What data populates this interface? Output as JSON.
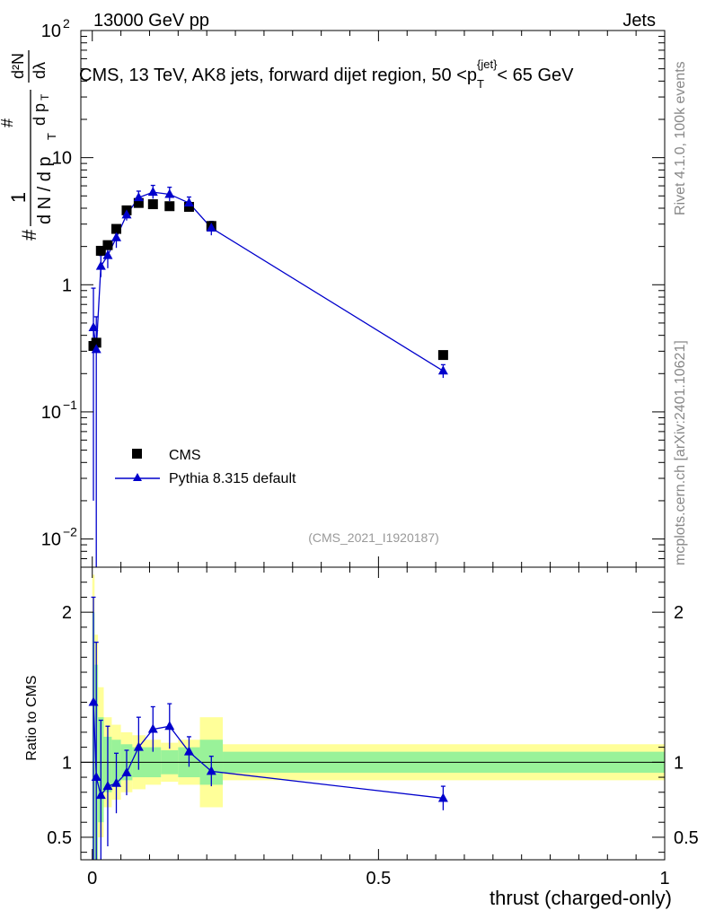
{
  "header": {
    "left": "13000 GeV pp",
    "right": "Jets"
  },
  "side_labels": {
    "rivet": "Rivet 4.1.0,  100k events",
    "mcplots": "mcplots.cern.ch [arXiv:2401.10621]"
  },
  "colors": {
    "mc": "#0000cc",
    "data": "#000000",
    "band_inner": "#99f299",
    "band_outer": "#ffff99"
  },
  "chart_data": [
    {
      "type": "scatter",
      "title": "CMS, 13 TeV, AK8 jets, forward dijet region, 50 <p_T^{jet}< 65 GeV",
      "title_parts": {
        "prefix": "CMS, 13 TeV, AK8 jets, forward dijet region, 50 <p",
        "sub": "T",
        "sup": "{jet}",
        "suffix": "< 65 GeV"
      },
      "ylabel": "1/(dN/dp_T) d²N/(dp_T dλ)",
      "ylabel_parts": {
        "hash": "#",
        "one": "1",
        "dn": "d N / d p",
        "t": "T",
        "numer_hash": "#",
        "numer": "d p",
        "d2n": "d²N",
        "dl": "dλ"
      },
      "xlabel": "",
      "yscale": "log",
      "ylim": [
        0.006,
        100
      ],
      "xlim": [
        -0.02,
        1.0
      ],
      "y_ticks": [
        {
          "value": 100,
          "label": "10",
          "exp": "2"
        },
        {
          "value": 10,
          "label": "10",
          "exp": ""
        },
        {
          "value": 1,
          "label": "1",
          "exp": ""
        },
        {
          "value": 0.1,
          "label": "10",
          "exp": "−1"
        },
        {
          "value": 0.01,
          "label": "10",
          "exp": "−2"
        }
      ],
      "watermark": "(CMS_2021_I1920187)",
      "legend": {
        "placement": "bottom-left",
        "entries": [
          "CMS",
          "Pythia 8.315 default"
        ]
      },
      "series": [
        {
          "name": "CMS",
          "marker": "square",
          "x": [
            0.002,
            0.007,
            0.015,
            0.027,
            0.042,
            0.06,
            0.081,
            0.106,
            0.135,
            0.169,
            0.208,
            0.613
          ],
          "y": [
            0.33,
            0.35,
            1.85,
            2.05,
            2.75,
            3.85,
            4.4,
            4.3,
            4.15,
            4.1,
            2.9,
            0.28
          ]
        },
        {
          "name": "Pythia 8.315 default",
          "marker": "triangle",
          "x": [
            0.002,
            0.007,
            0.015,
            0.027,
            0.042,
            0.06,
            0.081,
            0.106,
            0.135,
            0.169,
            0.208,
            0.613
          ],
          "y": [
            0.46,
            0.31,
            1.4,
            1.7,
            2.35,
            3.55,
            4.85,
            5.35,
            5.15,
            4.4,
            2.8,
            0.21
          ],
          "err_lo": [
            0.44,
            0.305,
            0.25,
            0.35,
            0.4,
            0.35,
            0.5,
            0.6,
            0.6,
            0.45,
            0.35,
            0.025
          ],
          "err_hi": [
            0.48,
            0.25,
            0.3,
            0.4,
            0.45,
            0.4,
            0.6,
            0.7,
            0.7,
            0.5,
            0.35,
            0.025
          ]
        }
      ]
    },
    {
      "type": "scatter",
      "title": "",
      "xlabel": "thrust (charged-only)",
      "ylabel": "Ratio to CMS",
      "ylim": [
        0.35,
        2.3
      ],
      "xlim": [
        -0.02,
        1.0
      ],
      "y_ticks": [
        {
          "value": 2,
          "label": "2"
        },
        {
          "value": 1,
          "label": "1"
        },
        {
          "value": 0.5,
          "label": "0.5"
        }
      ],
      "x_ticks": [
        {
          "value": 0,
          "label": "0"
        },
        {
          "value": 0.5,
          "label": "0.5"
        },
        {
          "value": 1,
          "label": "1"
        }
      ],
      "bands": {
        "edges": [
          0.0,
          0.004,
          0.01,
          0.02,
          0.034,
          0.05,
          0.07,
          0.093,
          0.12,
          0.15,
          0.188,
          0.228,
          1.0
        ],
        "inner": [
          [
            0.2,
            2.0
          ],
          [
            0.35,
            1.65
          ],
          [
            0.6,
            1.3
          ],
          [
            0.8,
            1.17
          ],
          [
            0.85,
            1.15
          ],
          [
            0.88,
            1.12
          ],
          [
            0.9,
            1.1
          ],
          [
            0.9,
            1.1
          ],
          [
            0.92,
            1.08
          ],
          [
            0.9,
            1.1
          ],
          [
            0.85,
            1.15
          ],
          [
            0.93,
            1.07
          ]
        ],
        "outer": [
          [
            0.1,
            2.25
          ],
          [
            0.2,
            1.85
          ],
          [
            0.5,
            1.5
          ],
          [
            0.7,
            1.3
          ],
          [
            0.75,
            1.25
          ],
          [
            0.8,
            1.2
          ],
          [
            0.82,
            1.18
          ],
          [
            0.85,
            1.15
          ],
          [
            0.87,
            1.13
          ],
          [
            0.85,
            1.15
          ],
          [
            0.7,
            1.3
          ],
          [
            0.88,
            1.12
          ]
        ]
      },
      "series": [
        {
          "name": "Pythia 8.315 default / CMS",
          "marker": "triangle",
          "x": [
            0.002,
            0.007,
            0.015,
            0.027,
            0.042,
            0.06,
            0.081,
            0.106,
            0.135,
            0.169,
            0.208,
            0.613
          ],
          "y": [
            1.4,
            0.9,
            0.78,
            0.84,
            0.86,
            0.93,
            1.1,
            1.22,
            1.24,
            1.07,
            0.94,
            0.76
          ],
          "err_lo": [
            1.2,
            0.75,
            0.5,
            0.4,
            0.2,
            0.15,
            0.15,
            0.15,
            0.15,
            0.1,
            0.1,
            0.08
          ],
          "err_hi": [
            0.7,
            0.9,
            0.5,
            0.4,
            0.2,
            0.15,
            0.2,
            0.15,
            0.15,
            0.1,
            0.1,
            0.08
          ]
        }
      ]
    }
  ]
}
